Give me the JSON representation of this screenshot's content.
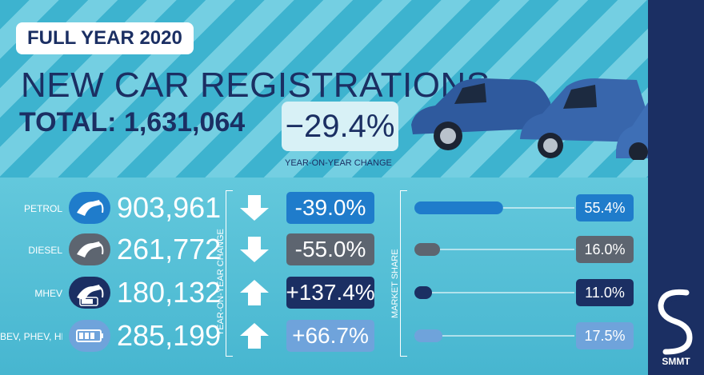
{
  "header": {
    "badge": "FULL YEAR 2020",
    "title": "NEW CAR REGISTRATIONS",
    "total_label": "TOTAL:",
    "total_value": "1,631,064",
    "yoy_value": "−29.4%",
    "yoy_label": "YEAR-ON-YEAR CHANGE"
  },
  "side_labels": {
    "yoy": "YEAR-ON-YEAR CHANGE",
    "share": "MARKET SHARE"
  },
  "brand": "SMMT",
  "colors": {
    "navy": "#1b2f63",
    "petrol": "#1f7ccb",
    "diesel": "#5d6570",
    "mhev": "#1b2f63",
    "ev": "#6fa3db"
  },
  "chart_data": {
    "type": "bar",
    "categories": [
      "PETROL",
      "DIESEL",
      "MHEV",
      "BEV, PHEV, HEV"
    ],
    "registrations": [
      903961,
      261772,
      180132,
      285199
    ],
    "registrations_display": [
      "903,961",
      "261,772",
      "180,132",
      "285,199"
    ],
    "yoy_change_pct": [
      -39.0,
      -55.0,
      137.4,
      66.7
    ],
    "yoy_change_display": [
      "-39.0%",
      "-55.0%",
      "+137.4%",
      "+66.7%"
    ],
    "market_share_pct": [
      55.4,
      16.0,
      11.0,
      17.5
    ],
    "market_share_display": [
      "55.4%",
      "16.0%",
      "11.0%",
      "17.5%"
    ],
    "icons": [
      "fuel-pump-icon",
      "fuel-pump-icon",
      "pump-and-battery-icon",
      "battery-icon"
    ],
    "series": [
      {
        "name": "YEAR-ON-YEAR CHANGE",
        "values": [
          -39.0,
          -55.0,
          137.4,
          66.7
        ]
      },
      {
        "name": "MARKET SHARE",
        "values": [
          55.4,
          16.0,
          11.0,
          17.5
        ]
      }
    ],
    "share_axis": [
      0,
      100
    ]
  }
}
